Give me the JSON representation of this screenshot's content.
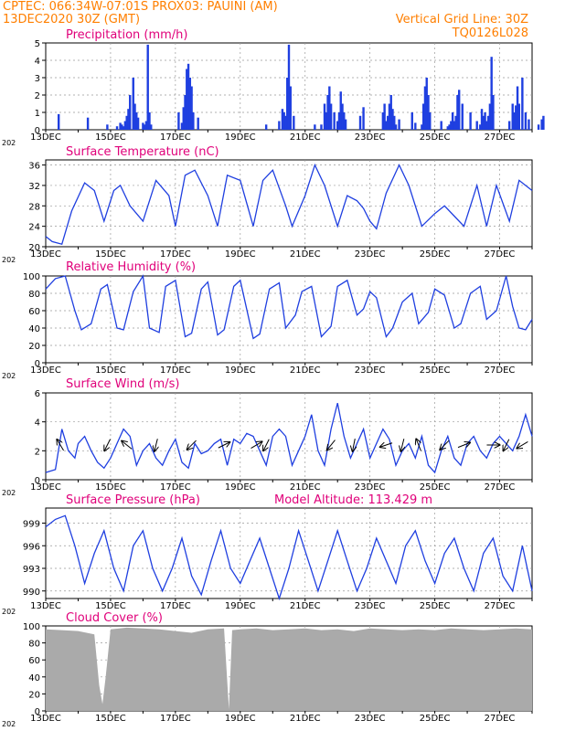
{
  "header": {
    "line1_left": "CPTEC:   066:34W-07:01S   PROX03: PAUINI (AM)",
    "line2_left": "13DEC2020 30Z (GMT)",
    "line2_right": "Vertical Grid Line: 30Z",
    "line3_right": "TQ0126L028",
    "model_altitude": "Model Altitude: 113.429  m"
  },
  "colors": {
    "header": "#ff7f00",
    "title": "#e0007a",
    "series": "#1f3fe0",
    "bars": "#1f3fe0",
    "cloud": "#aaaaaa",
    "arrow": "#000000"
  },
  "x_tick_labels": [
    "13DEC",
    "15DEC",
    "17DEC",
    "19DEC",
    "21DEC",
    "23DEC",
    "25DEC",
    "27DEC"
  ],
  "year_label": "202",
  "chart_data": [
    {
      "type": "bar",
      "title": "Precipitation (mm/h)",
      "ylim": [
        0,
        5
      ],
      "yticks": [
        0,
        1,
        2,
        3,
        4,
        5
      ],
      "x_days": [
        0.4,
        1.3,
        1.9,
        2.2,
        2.3,
        2.35,
        2.4,
        2.45,
        2.5,
        2.55,
        2.6,
        2.7,
        2.75,
        2.8,
        2.85,
        3.0,
        3.05,
        3.1,
        3.15,
        3.2,
        3.25,
        4.1,
        4.2,
        4.25,
        4.3,
        4.35,
        4.4,
        4.45,
        4.5,
        4.55,
        4.7,
        6.8,
        7.2,
        7.3,
        7.35,
        7.4,
        7.45,
        7.5,
        7.55,
        7.65,
        8.3,
        8.5,
        8.6,
        8.65,
        8.7,
        8.75,
        8.8,
        8.9,
        9.0,
        9.05,
        9.1,
        9.15,
        9.2,
        9.25,
        9.7,
        9.8,
        10.4,
        10.45,
        10.5,
        10.55,
        10.6,
        10.65,
        10.7,
        10.75,
        10.8,
        10.9,
        11.3,
        11.4,
        11.6,
        11.65,
        11.7,
        11.75,
        11.8,
        11.85,
        12.2,
        12.4,
        12.45,
        12.5,
        12.55,
        12.6,
        12.65,
        12.7,
        12.75,
        12.85,
        13.1,
        13.3,
        13.4,
        13.45,
        13.5,
        13.55,
        13.6,
        13.65,
        13.7,
        13.75,
        13.8,
        14.3,
        14.4,
        14.45,
        14.5,
        14.55,
        14.6,
        14.7,
        14.8,
        14.9,
        15.2,
        15.3,
        15.35
      ],
      "values": [
        0.9,
        0.7,
        0.3,
        0.2,
        0.4,
        0.3,
        0.2,
        0.5,
        0.8,
        1.2,
        2.0,
        3.0,
        1.5,
        1.0,
        0.7,
        0.4,
        0.3,
        0.5,
        4.9,
        1.0,
        0.3,
        1.0,
        0.4,
        1.3,
        2.0,
        3.5,
        3.8,
        3.0,
        2.5,
        1.0,
        0.7,
        0.3,
        0.5,
        1.2,
        1.0,
        0.8,
        3.0,
        4.9,
        2.5,
        0.8,
        0.3,
        0.3,
        1.5,
        1.0,
        2.0,
        2.5,
        1.5,
        1.0,
        0.5,
        1.0,
        2.2,
        1.5,
        1.0,
        0.6,
        0.8,
        1.3,
        1.0,
        1.5,
        0.5,
        0.8,
        1.5,
        2.0,
        1.2,
        0.8,
        0.3,
        0.6,
        1.0,
        0.4,
        0.3,
        1.5,
        2.5,
        3.0,
        2.0,
        1.0,
        0.5,
        0.2,
        0.3,
        0.5,
        1.0,
        0.5,
        0.8,
        2.0,
        2.3,
        1.5,
        1.0,
        0.5,
        0.3,
        1.2,
        0.8,
        1.0,
        0.5,
        0.8,
        1.5,
        4.2,
        2.0,
        0.5,
        1.5,
        1.0,
        1.4,
        2.5,
        1.5,
        3.0,
        1.0,
        0.6,
        0.3,
        0.6,
        0.8
      ]
    },
    {
      "type": "line",
      "title": "Surface Temperature (nC)",
      "ylim": [
        20,
        37
      ],
      "yticks": [
        20,
        24,
        28,
        32,
        36
      ],
      "x_days": [
        0,
        0.2,
        0.5,
        0.8,
        1.2,
        1.5,
        1.8,
        2.1,
        2.3,
        2.6,
        3.0,
        3.4,
        3.8,
        4.0,
        4.3,
        4.6,
        5.0,
        5.3,
        5.6,
        6.0,
        6.4,
        6.7,
        7.0,
        7.4,
        7.6,
        8.0,
        8.3,
        8.6,
        9.0,
        9.3,
        9.6,
        9.8,
        10.0,
        10.2,
        10.5,
        10.9,
        11.2,
        11.6,
        12.0,
        12.3,
        12.6,
        12.9,
        13.3,
        13.6,
        13.9,
        14.3,
        14.6,
        15.0
      ],
      "values": [
        22,
        21,
        20.5,
        27,
        32.5,
        31,
        25,
        31,
        32,
        28,
        25,
        33,
        30,
        24,
        34,
        35,
        30,
        24,
        34,
        33,
        24,
        33,
        35,
        28,
        24,
        30,
        36,
        32,
        24,
        30,
        29,
        27.5,
        25,
        23.5,
        30.5,
        36,
        32,
        24,
        26.5,
        28,
        26,
        24,
        32,
        24,
        32,
        25,
        33,
        31
      ]
    },
    {
      "type": "line",
      "title": "Relative Humidity (%)",
      "ylim": [
        0,
        100
      ],
      "yticks": [
        0,
        20,
        40,
        60,
        80,
        100
      ],
      "x_days": [
        0,
        0.3,
        0.6,
        0.9,
        1.1,
        1.4,
        1.7,
        1.9,
        2.2,
        2.4,
        2.7,
        3.0,
        3.2,
        3.5,
        3.7,
        4.0,
        4.3,
        4.5,
        4.8,
        5.0,
        5.3,
        5.5,
        5.8,
        6.0,
        6.4,
        6.6,
        6.9,
        7.2,
        7.4,
        7.7,
        7.9,
        8.2,
        8.5,
        8.8,
        9.0,
        9.3,
        9.6,
        9.8,
        10.0,
        10.2,
        10.5,
        10.7,
        11.0,
        11.3,
        11.5,
        11.8,
        12.0,
        12.3,
        12.6,
        12.8,
        13.1,
        13.4,
        13.6,
        13.9,
        14.2,
        14.4,
        14.6,
        14.8,
        15.0
      ],
      "values": [
        85,
        97,
        100,
        60,
        38,
        45,
        85,
        90,
        40,
        38,
        82,
        100,
        40,
        35,
        88,
        95,
        30,
        34,
        85,
        93,
        32,
        38,
        88,
        95,
        28,
        33,
        85,
        92,
        40,
        55,
        82,
        88,
        30,
        42,
        88,
        95,
        55,
        62,
        82,
        75,
        30,
        40,
        70,
        80,
        45,
        58,
        85,
        78,
        40,
        45,
        80,
        88,
        50,
        60,
        100,
        65,
        40,
        38,
        50
      ]
    },
    {
      "type": "line",
      "title": "Surface Wind (m/s)",
      "ylim": [
        0,
        6
      ],
      "yticks": [
        0,
        2,
        4,
        6
      ],
      "x_days": [
        0,
        0.3,
        0.5,
        0.7,
        0.9,
        1.0,
        1.2,
        1.4,
        1.6,
        1.8,
        2.0,
        2.2,
        2.4,
        2.6,
        2.8,
        3.0,
        3.2,
        3.4,
        3.6,
        3.8,
        4.0,
        4.2,
        4.4,
        4.6,
        4.8,
        5.0,
        5.2,
        5.4,
        5.6,
        5.8,
        6.0,
        6.2,
        6.4,
        6.6,
        6.8,
        7.0,
        7.2,
        7.4,
        7.6,
        7.8,
        8.0,
        8.2,
        8.4,
        8.6,
        8.8,
        9.0,
        9.2,
        9.4,
        9.6,
        9.8,
        10.0,
        10.2,
        10.4,
        10.6,
        10.8,
        11.0,
        11.2,
        11.4,
        11.6,
        11.8,
        12.0,
        12.2,
        12.4,
        12.6,
        12.8,
        13.0,
        13.2,
        13.4,
        13.6,
        13.8,
        14.0,
        14.2,
        14.4,
        14.6,
        14.8,
        15.0
      ],
      "values": [
        0.5,
        0.7,
        3.5,
        2.0,
        1.5,
        2.5,
        3.0,
        2.0,
        1.2,
        0.8,
        1.5,
        2.5,
        3.5,
        3.0,
        1.0,
        2.0,
        2.5,
        1.5,
        1.0,
        2.0,
        2.8,
        1.2,
        0.8,
        2.5,
        1.8,
        2.0,
        2.5,
        2.8,
        1.0,
        2.8,
        2.5,
        3.2,
        3.0,
        2.0,
        1.0,
        3.0,
        3.5,
        3.0,
        1.0,
        2.0,
        3.0,
        4.5,
        2.0,
        1.0,
        3.5,
        5.3,
        3.0,
        1.5,
        2.5,
        3.5,
        1.5,
        2.5,
        3.5,
        2.8,
        1.0,
        2.0,
        2.5,
        1.5,
        3.0,
        1.0,
        0.5,
        2.0,
        3.0,
        1.5,
        1.0,
        2.5,
        3.0,
        2.0,
        1.5,
        2.5,
        3.0,
        2.5,
        2.0,
        3.0,
        4.5,
        3.0
      ]
    },
    {
      "type": "line",
      "title": "Surface Pressure (hPa)",
      "ylim": [
        989,
        1001
      ],
      "yticks": [
        990,
        993,
        996,
        999
      ],
      "x_days": [
        0,
        0.3,
        0.6,
        0.9,
        1.2,
        1.5,
        1.8,
        2.1,
        2.4,
        2.7,
        3.0,
        3.3,
        3.6,
        3.9,
        4.2,
        4.5,
        4.8,
        5.1,
        5.4,
        5.7,
        6.0,
        6.3,
        6.6,
        6.9,
        7.2,
        7.5,
        7.8,
        8.1,
        8.4,
        8.7,
        9.0,
        9.3,
        9.6,
        9.9,
        10.2,
        10.5,
        10.8,
        11.1,
        11.4,
        11.7,
        12.0,
        12.3,
        12.6,
        12.9,
        13.2,
        13.5,
        13.8,
        14.1,
        14.4,
        14.7,
        15.0
      ],
      "values": [
        998.5,
        999.5,
        1000,
        996,
        991,
        995,
        998,
        993,
        990,
        996,
        998,
        993,
        990,
        993,
        997,
        992,
        989.5,
        994,
        998,
        993,
        991,
        994,
        997,
        993,
        989,
        993,
        998,
        994,
        990,
        994,
        998,
        994,
        990,
        993,
        997,
        994,
        991,
        996,
        998,
        994,
        991,
        995,
        997,
        993,
        990,
        995,
        997,
        992,
        990,
        996,
        990
      ]
    },
    {
      "type": "bar",
      "title": "Cloud Cover (%)",
      "ylim": [
        0,
        100
      ],
      "yticks": [
        0,
        20,
        40,
        60,
        80,
        100
      ],
      "x_days": [
        0,
        0.5,
        1.0,
        1.5,
        1.65,
        1.75,
        1.85,
        2.0,
        2.5,
        3.0,
        3.5,
        4.0,
        4.5,
        5.0,
        5.5,
        5.65,
        5.75,
        6.0,
        6.5,
        7.0,
        7.5,
        8.0,
        8.5,
        9.0,
        9.5,
        10.0,
        10.5,
        11.0,
        11.5,
        12.0,
        12.5,
        13.0,
        13.5,
        14.0,
        14.5,
        15.0
      ],
      "values": [
        96,
        95,
        94,
        90,
        30,
        8,
        40,
        96,
        98,
        97,
        96,
        94,
        92,
        96,
        97,
        2,
        95,
        96,
        97,
        95,
        96,
        97,
        95,
        96,
        94,
        97,
        96,
        95,
        96,
        95,
        97,
        96,
        95,
        96,
        97,
        96
      ]
    }
  ],
  "wind_arrows": [
    {
      "day": 0.45,
      "u": -1.5,
      "v": 2.5
    },
    {
      "day": 1.9,
      "u": -1.0,
      "v": -2.0
    },
    {
      "day": 2.5,
      "u": -2.5,
      "v": 2.0
    },
    {
      "day": 3.4,
      "u": -0.5,
      "v": -2.0
    },
    {
      "day": 4.5,
      "u": -2.0,
      "v": -2.0
    },
    {
      "day": 5.5,
      "u": 4.0,
      "v": 2.0
    },
    {
      "day": 6.5,
      "u": 2.5,
      "v": 1.5
    },
    {
      "day": 6.8,
      "u": -1.0,
      "v": -2.0
    },
    {
      "day": 8.8,
      "u": -2.0,
      "v": -2.5
    },
    {
      "day": 9.5,
      "u": -0.5,
      "v": -2.5
    },
    {
      "day": 10.5,
      "u": -3.0,
      "v": -1.0
    },
    {
      "day": 11.0,
      "u": -0.5,
      "v": -2.0
    },
    {
      "day": 11.5,
      "u": -1.0,
      "v": 2.5
    },
    {
      "day": 12.3,
      "u": -2.0,
      "v": -2.0
    },
    {
      "day": 12.9,
      "u": 2.5,
      "v": 1.0
    },
    {
      "day": 13.8,
      "u": 4.0,
      "v": 0.0
    },
    {
      "day": 14.2,
      "u": -1.0,
      "v": -2.0
    },
    {
      "day": 14.7,
      "u": -2.5,
      "v": -1.5
    }
  ]
}
